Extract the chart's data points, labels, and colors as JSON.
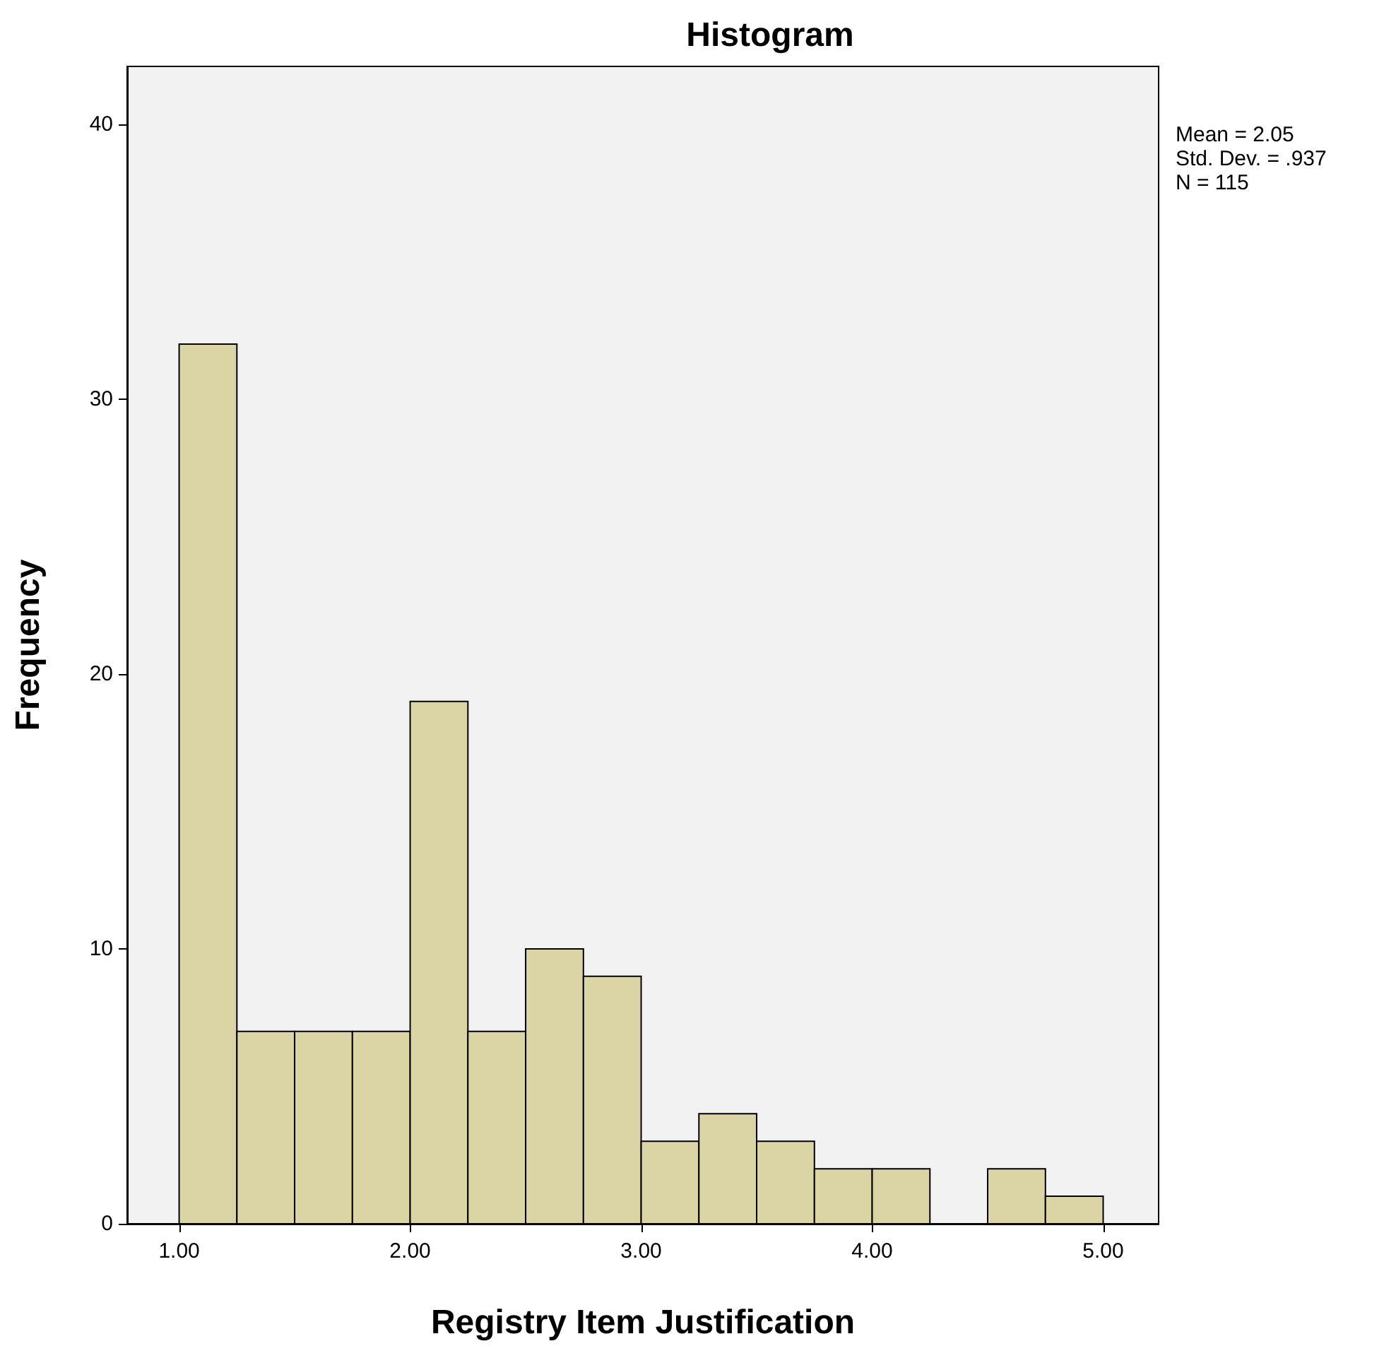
{
  "chart_data": {
    "type": "histogram",
    "title": "Histogram",
    "xlabel": "Registry Item Justification",
    "ylabel": "Frequency",
    "bins": [
      1.0,
      1.25,
      1.5,
      1.75,
      2.0,
      2.25,
      2.5,
      2.75,
      3.0,
      3.25,
      3.5,
      3.75,
      4.0,
      4.25,
      4.5,
      4.75,
      5.0
    ],
    "values": [
      32,
      7,
      7,
      7,
      19,
      7,
      10,
      9,
      3,
      4,
      3,
      2,
      2,
      0,
      2,
      1
    ],
    "color": "#dbd5a6",
    "xlim": [
      0.775,
      5.24
    ],
    "xticks": [
      {
        "value": 1,
        "label": "1.00"
      },
      {
        "value": 2,
        "label": "2.00"
      },
      {
        "value": 3,
        "label": "3.00"
      },
      {
        "value": 4,
        "label": "4.00"
      },
      {
        "value": 5,
        "label": "5.00"
      }
    ],
    "ylim": [
      0,
      42.1
    ],
    "yticks": [
      0,
      10,
      20,
      30,
      40
    ],
    "grid": false,
    "annotations": [
      "Mean = 2.05",
      "Std. Dev. = .937",
      "N = 115"
    ]
  }
}
